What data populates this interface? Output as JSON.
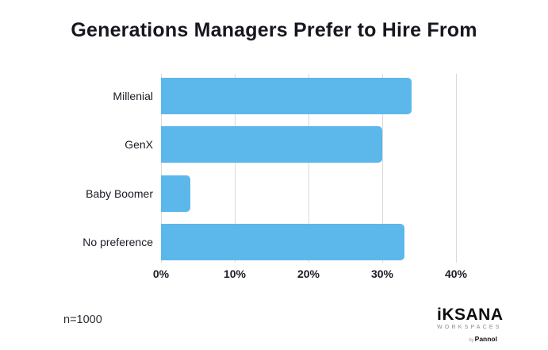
{
  "title": "Generations Managers Prefer to Hire From",
  "chart_data": {
    "type": "bar",
    "orientation": "horizontal",
    "title": "Generations Managers Prefer to Hire From",
    "categories": [
      "Millenial",
      "GenX",
      "Baby Boomer",
      "No preference"
    ],
    "values": [
      34,
      30,
      4,
      33
    ],
    "value_unit": "percent",
    "x_tick_labels": [
      "0%",
      "10%",
      "20%",
      "30%",
      "40%"
    ],
    "x_tick_values": [
      0,
      10,
      20,
      30,
      40
    ],
    "xlim": [
      0,
      45
    ],
    "grid": "vertical-gridlines-on",
    "legend": "none",
    "bar_color": "#5cb8ea",
    "gridline_color": "#dadada",
    "text_color": "#1b1b26",
    "sample_note": "n=1000"
  },
  "footer": {
    "note": "n=1000",
    "logo": {
      "brand": "iKSANA",
      "sub": "WORKSPACES",
      "byline_prefix": "by",
      "byline_name": "Pannol"
    }
  }
}
